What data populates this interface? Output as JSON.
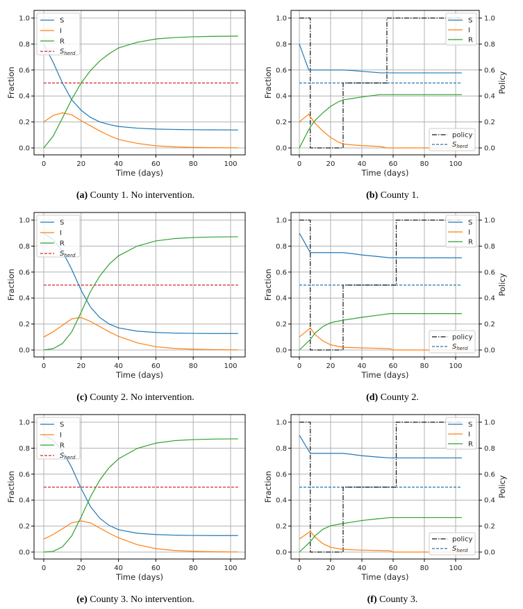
{
  "colors": {
    "S": "#1f77b4",
    "I": "#ff7f0e",
    "R": "#2ca02c",
    "herd_left": "#d62728",
    "herd_right": "#1f77b4",
    "policy": "#111111",
    "grid": "#b0b0b0"
  },
  "chart_data": [
    {
      "id": "a",
      "type": "line",
      "caption_tag": "(a)",
      "caption": " County 1. No intervention.",
      "xlabel": "Time (days)",
      "ylabel": "Fraction",
      "xlim": [
        -4,
        108
      ],
      "ylim": [
        -0.05,
        1.05
      ],
      "xticks": [
        "0",
        "20",
        "40",
        "60",
        "80",
        "100"
      ],
      "yticks": [
        "0.0",
        "0.2",
        "0.4",
        "0.6",
        "0.8",
        "1.0"
      ],
      "grid": true,
      "legend": "top-left",
      "legend_labels": {
        "S": "S",
        "I": "I",
        "R": "R",
        "herd": "S",
        "herd_sub": "herd"
      },
      "x": [
        0,
        5,
        10,
        15,
        20,
        25,
        30,
        35,
        40,
        50,
        60,
        70,
        80,
        90,
        104
      ],
      "series": [
        {
          "name": "S",
          "values": [
            0.8,
            0.66,
            0.5,
            0.37,
            0.29,
            0.235,
            0.2,
            0.18,
            0.165,
            0.152,
            0.145,
            0.142,
            0.14,
            0.139,
            0.138
          ]
        },
        {
          "name": "I",
          "values": [
            0.2,
            0.25,
            0.27,
            0.255,
            0.21,
            0.17,
            0.13,
            0.095,
            0.065,
            0.035,
            0.016,
            0.008,
            0.004,
            0.002,
            0.001
          ]
        },
        {
          "name": "R",
          "values": [
            0,
            0.09,
            0.23,
            0.375,
            0.5,
            0.595,
            0.67,
            0.725,
            0.77,
            0.813,
            0.839,
            0.85,
            0.856,
            0.859,
            0.861
          ]
        }
      ],
      "herd": 0.5
    },
    {
      "id": "b",
      "type": "line",
      "caption_tag": "(b)",
      "caption": " County 1.",
      "xlabel": "Time (days)",
      "ylabel": "Fraction",
      "ylabel_right": "Policy",
      "xlim": [
        -4,
        108
      ],
      "ylim": [
        -0.05,
        1.05
      ],
      "xticks": [
        "0",
        "20",
        "40",
        "60",
        "80",
        "100"
      ],
      "yticks": [
        "0.0",
        "0.2",
        "0.4",
        "0.6",
        "0.8",
        "1.0"
      ],
      "grid": true,
      "legend": "top-right / bottom-right",
      "legend_labels": {
        "S": "S",
        "I": "I",
        "R": "R",
        "policy": "policy",
        "herd": "S",
        "herd_sub": "herd"
      },
      "x": [
        0,
        6,
        7,
        10,
        15,
        20,
        25,
        28,
        35,
        40,
        50,
        52,
        56,
        60,
        80,
        104
      ],
      "series": [
        {
          "name": "S",
          "values": [
            0.8,
            0.6,
            0.6,
            0.6,
            0.6,
            0.6,
            0.6,
            0.6,
            0.595,
            0.59,
            0.58,
            0.578,
            0.578,
            0.578,
            0.578,
            0.578
          ]
        },
        {
          "name": "I",
          "values": [
            0.2,
            0.26,
            0.24,
            0.19,
            0.13,
            0.08,
            0.045,
            0.03,
            0.022,
            0.018,
            0.012,
            0.01,
            0,
            0,
            0,
            0
          ]
        },
        {
          "name": "R",
          "values": [
            0,
            0.14,
            0.16,
            0.21,
            0.27,
            0.32,
            0.355,
            0.37,
            0.383,
            0.392,
            0.408,
            0.41,
            0.41,
            0.41,
            0.41,
            0.41
          ]
        }
      ],
      "policy": {
        "x": [
          0,
          7,
          7,
          28,
          28,
          56,
          56,
          104
        ],
        "values": [
          1,
          1,
          0,
          0,
          0.5,
          0.5,
          1,
          1
        ]
      },
      "herd": 0.5
    },
    {
      "id": "c",
      "type": "line",
      "caption_tag": "(c)",
      "caption": " County 2. No intervention.",
      "xlabel": "Time (days)",
      "ylabel": "Fraction",
      "xlim": [
        -4,
        108
      ],
      "ylim": [
        -0.05,
        1.05
      ],
      "xticks": [
        "0",
        "20",
        "40",
        "60",
        "80",
        "100"
      ],
      "yticks": [
        "0.0",
        "0.2",
        "0.4",
        "0.6",
        "0.8",
        "1.0"
      ],
      "grid": true,
      "legend": "top-left",
      "legend_labels": {
        "S": "S",
        "I": "I",
        "R": "R",
        "herd": "S",
        "herd_sub": "herd"
      },
      "x": [
        0,
        5,
        10,
        15,
        20,
        25,
        30,
        35,
        40,
        50,
        60,
        70,
        80,
        90,
        104
      ],
      "series": [
        {
          "name": "S",
          "values": [
            0.9,
            0.85,
            0.76,
            0.62,
            0.46,
            0.33,
            0.25,
            0.2,
            0.17,
            0.145,
            0.135,
            0.13,
            0.128,
            0.127,
            0.127
          ]
        },
        {
          "name": "I",
          "values": [
            0.1,
            0.14,
            0.19,
            0.24,
            0.25,
            0.22,
            0.18,
            0.14,
            0.105,
            0.055,
            0.025,
            0.012,
            0.006,
            0.003,
            0.001
          ]
        },
        {
          "name": "R",
          "values": [
            0,
            0.01,
            0.05,
            0.14,
            0.29,
            0.45,
            0.57,
            0.66,
            0.725,
            0.8,
            0.84,
            0.858,
            0.866,
            0.87,
            0.872
          ]
        }
      ],
      "herd": 0.5
    },
    {
      "id": "d",
      "type": "line",
      "caption_tag": "(d)",
      "caption": " County 2.",
      "xlabel": "Time (days)",
      "ylabel": "Fraction",
      "ylabel_right": "Policy",
      "xlim": [
        -4,
        108
      ],
      "ylim": [
        -0.05,
        1.05
      ],
      "xticks": [
        "0",
        "20",
        "40",
        "60",
        "80",
        "100"
      ],
      "yticks": [
        "0.0",
        "0.2",
        "0.4",
        "0.6",
        "0.8",
        "1.0"
      ],
      "grid": true,
      "legend": "top-right / bottom-right",
      "legend_labels": {
        "S": "S",
        "I": "I",
        "R": "R",
        "policy": "policy",
        "herd": "S",
        "herd_sub": "herd"
      },
      "x": [
        0,
        7,
        10,
        15,
        20,
        28,
        35,
        40,
        50,
        58,
        60,
        80,
        104
      ],
      "series": [
        {
          "name": "S",
          "values": [
            0.9,
            0.75,
            0.75,
            0.75,
            0.75,
            0.75,
            0.74,
            0.732,
            0.72,
            0.71,
            0.71,
            0.71,
            0.71
          ]
        },
        {
          "name": "I",
          "values": [
            0.1,
            0.17,
            0.12,
            0.07,
            0.04,
            0.02,
            0.018,
            0.016,
            0.013,
            0.01,
            0,
            0,
            0
          ]
        },
        {
          "name": "R",
          "values": [
            0,
            0.08,
            0.13,
            0.18,
            0.21,
            0.23,
            0.242,
            0.252,
            0.267,
            0.28,
            0.28,
            0.28,
            0.28
          ]
        }
      ],
      "policy": {
        "x": [
          0,
          7,
          7,
          28,
          28,
          62,
          62,
          104
        ],
        "values": [
          1,
          1,
          0,
          0,
          0.5,
          0.5,
          1,
          1
        ]
      },
      "herd": 0.5
    },
    {
      "id": "e",
      "type": "line",
      "caption_tag": "(e)",
      "caption": " County 3. No intervention.",
      "xlabel": "Time (days)",
      "ylabel": "Fraction",
      "xlim": [
        -4,
        108
      ],
      "ylim": [
        -0.05,
        1.05
      ],
      "xticks": [
        "0",
        "20",
        "40",
        "60",
        "80",
        "100"
      ],
      "yticks": [
        "0.0",
        "0.2",
        "0.4",
        "0.6",
        "0.8",
        "1.0"
      ],
      "grid": true,
      "legend": "top-left",
      "legend_labels": {
        "S": "S",
        "I": "I",
        "R": "R",
        "herd": "S",
        "herd_sub": "herd"
      },
      "x": [
        0,
        5,
        10,
        15,
        20,
        25,
        30,
        35,
        40,
        50,
        60,
        70,
        80,
        90,
        104
      ],
      "series": [
        {
          "name": "S",
          "values": [
            0.9,
            0.86,
            0.78,
            0.65,
            0.49,
            0.35,
            0.26,
            0.205,
            0.172,
            0.145,
            0.135,
            0.13,
            0.128,
            0.127,
            0.127
          ]
        },
        {
          "name": "I",
          "values": [
            0.1,
            0.135,
            0.18,
            0.225,
            0.24,
            0.225,
            0.185,
            0.145,
            0.11,
            0.057,
            0.026,
            0.012,
            0.006,
            0.003,
            0.001
          ]
        },
        {
          "name": "R",
          "values": [
            0,
            0.005,
            0.04,
            0.125,
            0.27,
            0.425,
            0.555,
            0.65,
            0.718,
            0.798,
            0.839,
            0.858,
            0.866,
            0.87,
            0.872
          ]
        }
      ],
      "herd": 0.5
    },
    {
      "id": "f",
      "type": "line",
      "caption_tag": "(f)",
      "caption": " County 3.",
      "xlabel": "Time (days)",
      "ylabel": "Fraction",
      "ylabel_right": "Policy",
      "xlim": [
        -4,
        108
      ],
      "ylim": [
        -0.05,
        1.05
      ],
      "xticks": [
        "0",
        "20",
        "40",
        "60",
        "80",
        "100"
      ],
      "yticks": [
        "0.0",
        "0.2",
        "0.4",
        "0.6",
        "0.8",
        "1.0"
      ],
      "grid": true,
      "legend": "top-right / bottom-right",
      "legend_labels": {
        "S": "S",
        "I": "I",
        "R": "R",
        "policy": "policy",
        "herd": "S",
        "herd_sub": "herd"
      },
      "x": [
        0,
        7,
        10,
        15,
        20,
        28,
        35,
        40,
        50,
        58,
        60,
        80,
        104
      ],
      "series": [
        {
          "name": "S",
          "values": [
            0.9,
            0.76,
            0.76,
            0.76,
            0.76,
            0.76,
            0.75,
            0.742,
            0.732,
            0.725,
            0.725,
            0.725,
            0.725
          ]
        },
        {
          "name": "I",
          "values": [
            0.1,
            0.16,
            0.115,
            0.065,
            0.037,
            0.02,
            0.017,
            0.015,
            0.012,
            0.01,
            0,
            0,
            0
          ]
        },
        {
          "name": "R",
          "values": [
            0,
            0.08,
            0.125,
            0.175,
            0.203,
            0.22,
            0.233,
            0.243,
            0.256,
            0.265,
            0.265,
            0.265,
            0.265
          ]
        }
      ],
      "policy": {
        "x": [
          0,
          7,
          7,
          28,
          28,
          62,
          62,
          104
        ],
        "values": [
          1,
          1,
          0,
          0,
          0.5,
          0.5,
          1,
          1
        ]
      },
      "herd": 0.5
    }
  ]
}
